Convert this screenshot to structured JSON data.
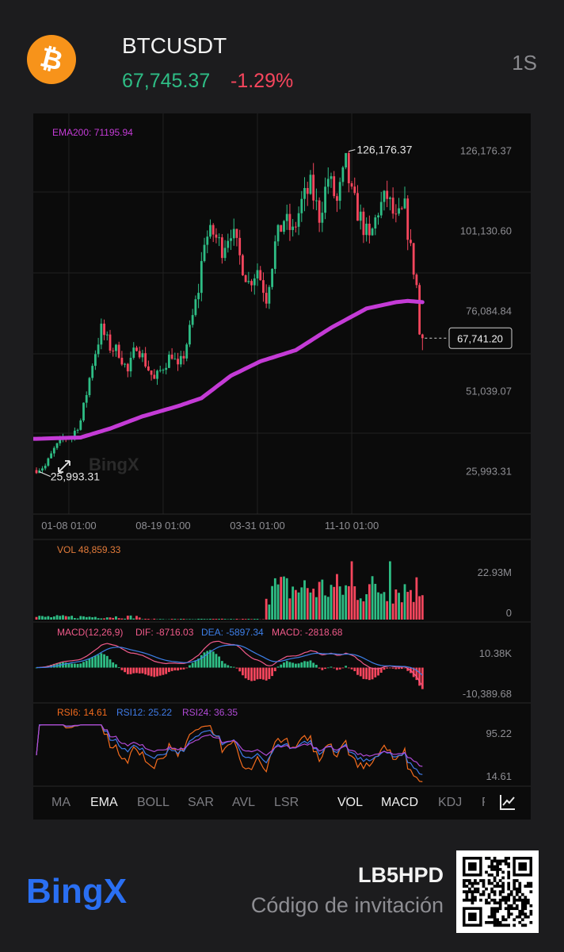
{
  "header": {
    "coin_icon": "bitcoin-icon",
    "coin_symbol": "₿",
    "pair": "BTCUSDT",
    "price": "67,745.37",
    "change": "-1.29%",
    "interval": "1S"
  },
  "colors": {
    "up": "#2ebd85",
    "down": "#f6465d",
    "ema": "#c43bd6",
    "dif": "#f05a8a",
    "dea": "#3d7fe8",
    "rsi6": "#f26b1d",
    "rsi12": "#3f7be8",
    "rsi24": "#b04ad6"
  },
  "chart_data": {
    "type": "candlestick",
    "ema_legend": "EMA200: 71195.94",
    "ylim": [
      14000,
      136000
    ],
    "y_ticks": [
      "126,176.37",
      "101,130.60",
      "76,084.84",
      "51,039.07",
      "25,993.31"
    ],
    "y_tick_values": [
      126176.37,
      101130.6,
      76084.84,
      51039.07,
      25993.31
    ],
    "x_ticks": [
      "01-08 01:00",
      "08-19 01:00",
      "03-31 01:00",
      "11-10 01:00"
    ],
    "x_tick_index": [
      11,
      43,
      75,
      107
    ],
    "high_label": "126,176.37",
    "high_value": 126176.37,
    "low_label": "25,993.31",
    "low_value": 25993.31,
    "last_price_label": "67,741.20",
    "last_price": 67741.2,
    "anchors": [
      [
        0,
        26500
      ],
      [
        3,
        27800
      ],
      [
        6,
        33000
      ],
      [
        9,
        36500
      ],
      [
        12,
        37000
      ],
      [
        15,
        42000
      ],
      [
        17,
        50500
      ],
      [
        19,
        60000
      ],
      [
        22,
        70500
      ],
      [
        25,
        65000
      ],
      [
        28,
        63500
      ],
      [
        31,
        57000
      ],
      [
        34,
        66000
      ],
      [
        37,
        60000
      ],
      [
        40,
        54500
      ],
      [
        43,
        59000
      ],
      [
        46,
        63000
      ],
      [
        48,
        58000
      ],
      [
        50,
        62500
      ],
      [
        52,
        70000
      ],
      [
        55,
        83000
      ],
      [
        57,
        99000
      ],
      [
        60,
        100500
      ],
      [
        63,
        96000
      ],
      [
        66,
        102000
      ],
      [
        69,
        93000
      ],
      [
        72,
        85000
      ],
      [
        75,
        89500
      ],
      [
        78,
        80500
      ],
      [
        81,
        97000
      ],
      [
        84,
        105000
      ],
      [
        87,
        100500
      ],
      [
        90,
        110000
      ],
      [
        93,
        115000
      ],
      [
        96,
        106000
      ],
      [
        99,
        118000
      ],
      [
        102,
        110000
      ],
      [
        105,
        122000
      ],
      [
        107,
        112000
      ],
      [
        110,
        105000
      ],
      [
        113,
        98000
      ],
      [
        116,
        108000
      ],
      [
        119,
        112000
      ],
      [
        122,
        104000
      ],
      [
        125,
        108000
      ],
      [
        127,
        95000
      ],
      [
        129,
        84000
      ],
      [
        130,
        69000
      ],
      [
        131,
        68200
      ]
    ],
    "ema_anchors": [
      [
        0,
        36300
      ],
      [
        15,
        36700
      ],
      [
        25,
        39500
      ],
      [
        36,
        43300
      ],
      [
        48,
        46500
      ],
      [
        56,
        49000
      ],
      [
        66,
        56000
      ],
      [
        76,
        60500
      ],
      [
        88,
        64000
      ],
      [
        100,
        71000
      ],
      [
        112,
        77000
      ],
      [
        122,
        79000
      ],
      [
        126,
        79400
      ],
      [
        131,
        79000
      ]
    ]
  },
  "volume": {
    "legend": "VOL 48,859.33",
    "ticks": [
      "22.93M",
      "0"
    ],
    "max": 26000000
  },
  "macd": {
    "legend_params": "MACD(12,26,9)",
    "legend_dif": "DIF: -8716.03",
    "legend_dea": "DEA: -5897.34",
    "legend_macd": "MACD: -2818.68",
    "ticks": [
      "10.38K",
      "-10,389.68"
    ],
    "range": [
      -13500,
      12500
    ]
  },
  "rsi": {
    "legend_rsi6": "RSI6: 14.61",
    "legend_rsi12": "RSI12: 25.22",
    "legend_rsi24": "RSI24: 36.35",
    "ticks": [
      "95.22",
      "14.61"
    ],
    "range": [
      5,
      105
    ]
  },
  "tabs": [
    "MA",
    "EMA",
    "BOLL",
    "SAR",
    "AVL",
    "LSR",
    "VOL",
    "MACD",
    "KDJ",
    "R"
  ],
  "active_tabs": [
    "EMA",
    "VOL",
    "MACD"
  ],
  "watermark": "BingX",
  "footer": {
    "logo_text": "BingX",
    "invite_code": "LB5HPD",
    "invite_label": "Código de invitación"
  }
}
